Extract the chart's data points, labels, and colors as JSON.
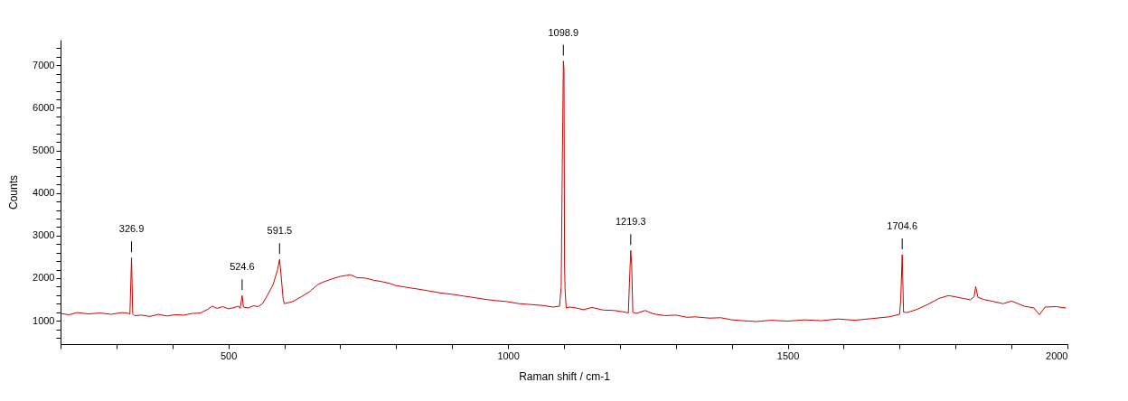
{
  "chart_data": {
    "type": "line",
    "xlabel": "Raman shift / cm-1",
    "ylabel": "Counts",
    "xlim": [
      200,
      2000
    ],
    "ylim": [
      450,
      7600
    ],
    "xticks": [
      {
        "value": 200,
        "label": null
      },
      {
        "value": 300,
        "label": null
      },
      {
        "value": 400,
        "label": null
      },
      500,
      {
        "value": 600,
        "label": null
      },
      {
        "value": 700,
        "label": null
      },
      {
        "value": 800,
        "label": null
      },
      {
        "value": 900,
        "label": null
      },
      1000,
      {
        "value": 1100,
        "label": null
      },
      {
        "value": 1200,
        "label": null
      },
      {
        "value": 1300,
        "label": null
      },
      {
        "value": 1400,
        "label": null
      },
      1500,
      {
        "value": 1600,
        "label": null
      },
      {
        "value": 1700,
        "label": null
      },
      {
        "value": 1800,
        "label": null
      },
      {
        "value": 1900,
        "label": null
      },
      2000
    ],
    "yticks": [
      {
        "value": 600,
        "label": null
      },
      {
        "value": 800,
        "label": null
      },
      1000,
      {
        "value": 1200,
        "label": null
      },
      {
        "value": 1400,
        "label": null
      },
      {
        "value": 1600,
        "label": null
      },
      {
        "value": 1800,
        "label": null
      },
      2000,
      {
        "value": 2200,
        "label": null
      },
      {
        "value": 2400,
        "label": null
      },
      {
        "value": 2600,
        "label": null
      },
      {
        "value": 2800,
        "label": null
      },
      3000,
      {
        "value": 3200,
        "label": null
      },
      {
        "value": 3400,
        "label": null
      },
      {
        "value": 3600,
        "label": null
      },
      {
        "value": 3800,
        "label": null
      },
      4000,
      {
        "value": 4200,
        "label": null
      },
      {
        "value": 4400,
        "label": null
      },
      {
        "value": 4600,
        "label": null
      },
      {
        "value": 4800,
        "label": null
      },
      5000,
      {
        "value": 5200,
        "label": null
      },
      {
        "value": 5400,
        "label": null
      },
      {
        "value": 5600,
        "label": null
      },
      {
        "value": 5800,
        "label": null
      },
      6000,
      {
        "value": 6200,
        "label": null
      },
      {
        "value": 6400,
        "label": null
      },
      {
        "value": 6600,
        "label": null
      },
      {
        "value": 6800,
        "label": null
      },
      7000,
      {
        "value": 7200,
        "label": null
      },
      {
        "value": 7400,
        "label": null
      }
    ],
    "grid": false,
    "marker": "none",
    "line_style": "solid",
    "series": [
      {
        "color": "#d40000",
        "x": [
          200,
          215,
          230,
          250,
          270,
          290,
          310,
          322,
          324,
          326.9,
          329,
          332,
          345,
          360,
          375,
          390,
          405,
          420,
          435,
          450,
          462,
          471,
          480,
          490,
          500,
          508,
          518,
          521,
          524.6,
          527,
          535,
          545,
          553,
          561,
          570,
          580,
          588,
          591.5,
          594,
          598,
          600,
          615,
          630,
          645,
          660,
          670,
          685,
          700,
          710,
          718,
          730,
          745,
          760,
          777,
          790,
          798,
          820,
          840,
          858,
          880,
          900,
          920,
          940,
          960,
          980,
          997,
          1020,
          1040,
          1060,
          1080,
          1092,
          1095,
          1097,
          1098.9,
          1100,
          1101,
          1102,
          1104,
          1110,
          1121,
          1135,
          1150,
          1170,
          1190,
          1210,
          1215,
          1217,
          1219.3,
          1221,
          1223,
          1229,
          1245,
          1260,
          1280,
          1300,
          1320,
          1335,
          1360,
          1380,
          1400,
          1420,
          1444,
          1470,
          1500,
          1530,
          1560,
          1590,
          1620,
          1650,
          1681,
          1700,
          1702,
          1704.6,
          1707,
          1713,
          1730,
          1750,
          1770,
          1787,
          1800,
          1815,
          1826,
          1833,
          1836,
          1840,
          1850,
          1868,
          1885,
          1900,
          1923,
          1940,
          1950,
          1960,
          1980,
          1997
        ],
        "values": [
          1170,
          1140,
          1190,
          1160,
          1180,
          1150,
          1190,
          1170,
          1150,
          2480,
          1160,
          1120,
          1130,
          1100,
          1150,
          1110,
          1140,
          1130,
          1170,
          1180,
          1260,
          1340,
          1290,
          1330,
          1280,
          1300,
          1340,
          1290,
          1590,
          1320,
          1300,
          1350,
          1330,
          1400,
          1600,
          1850,
          2200,
          2440,
          2100,
          1500,
          1400,
          1450,
          1560,
          1680,
          1850,
          1910,
          1980,
          2040,
          2060,
          2080,
          2010,
          2000,
          1950,
          1910,
          1870,
          1830,
          1780,
          1740,
          1700,
          1650,
          1620,
          1580,
          1540,
          1500,
          1470,
          1450,
          1400,
          1380,
          1360,
          1320,
          1340,
          1800,
          4700,
          7100,
          6900,
          2300,
          1700,
          1300,
          1320,
          1300,
          1260,
          1310,
          1250,
          1240,
          1200,
          1180,
          1900,
          2650,
          2300,
          1200,
          1170,
          1240,
          1160,
          1120,
          1130,
          1080,
          1090,
          1060,
          1070,
          1020,
          1000,
          980,
          1010,
          990,
          1020,
          1000,
          1040,
          1010,
          1050,
          1090,
          1150,
          1500,
          2550,
          1200,
          1190,
          1260,
          1380,
          1520,
          1590,
          1560,
          1520,
          1490,
          1560,
          1800,
          1550,
          1500,
          1450,
          1400,
          1460,
          1340,
          1300,
          1140,
          1320,
          1330,
          1300
        ]
      }
    ],
    "annotations": [
      {
        "text": "326.9",
        "x": 326.9,
        "y": 2480
      },
      {
        "text": "524.6",
        "x": 524.6,
        "y": 1590
      },
      {
        "text": "591.5",
        "x": 591.5,
        "y": 2440
      },
      {
        "text": "1098.9",
        "x": 1098.9,
        "y": 7100
      },
      {
        "text": "1219.3",
        "x": 1219.3,
        "y": 2650
      },
      {
        "text": "1704.6",
        "x": 1704.6,
        "y": 2550
      }
    ]
  }
}
